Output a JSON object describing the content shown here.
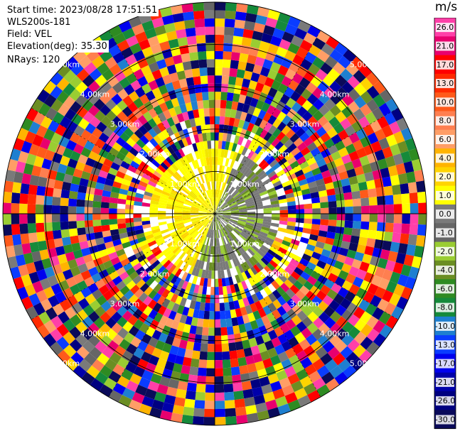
{
  "header": {
    "start_time": "Start time: 2023/08/28 17:51:51",
    "instrument": "WLS200s-181",
    "field": "Field: VEL",
    "elevation": "Elevation(deg): 35.30",
    "nrays": "NRays: 120"
  },
  "colorbar": {
    "unit": "m/s",
    "ticks": [
      "26.0",
      "21.0",
      "17.0",
      "13.0",
      "10.0",
      "8.0",
      "6.0",
      "4.0",
      "2.0",
      "1.0",
      "0.0",
      "-1.0",
      "-2.0",
      "-4.0",
      "-6.0",
      "-8.0",
      "-10.0",
      "-13.0",
      "-17.0",
      "-21.0",
      "-26.0",
      "-30.0"
    ],
    "colors": [
      "#ff3fa8",
      "#e8006e",
      "#ff0000",
      "#ff2a00",
      "#ff5a1a",
      "#ff7f50",
      "#ff9e66",
      "#ffb400",
      "#ffd400",
      "#ffff00",
      "#7a7a7a",
      "#666666",
      "#9acd32",
      "#6b8e23",
      "#2e8b22",
      "#158a3a",
      "#1e7fd0",
      "#0a3cff",
      "#0000ee",
      "#0000aa",
      "#000080",
      "#0a0a5a"
    ]
  },
  "range_rings": {
    "labels": [
      "1.00km",
      "2.00km",
      "3.00km",
      "4.00km",
      "5.00km"
    ]
  },
  "scan": {
    "nrays": 120,
    "ngates": 26,
    "max_range_km": 5.0
  }
}
